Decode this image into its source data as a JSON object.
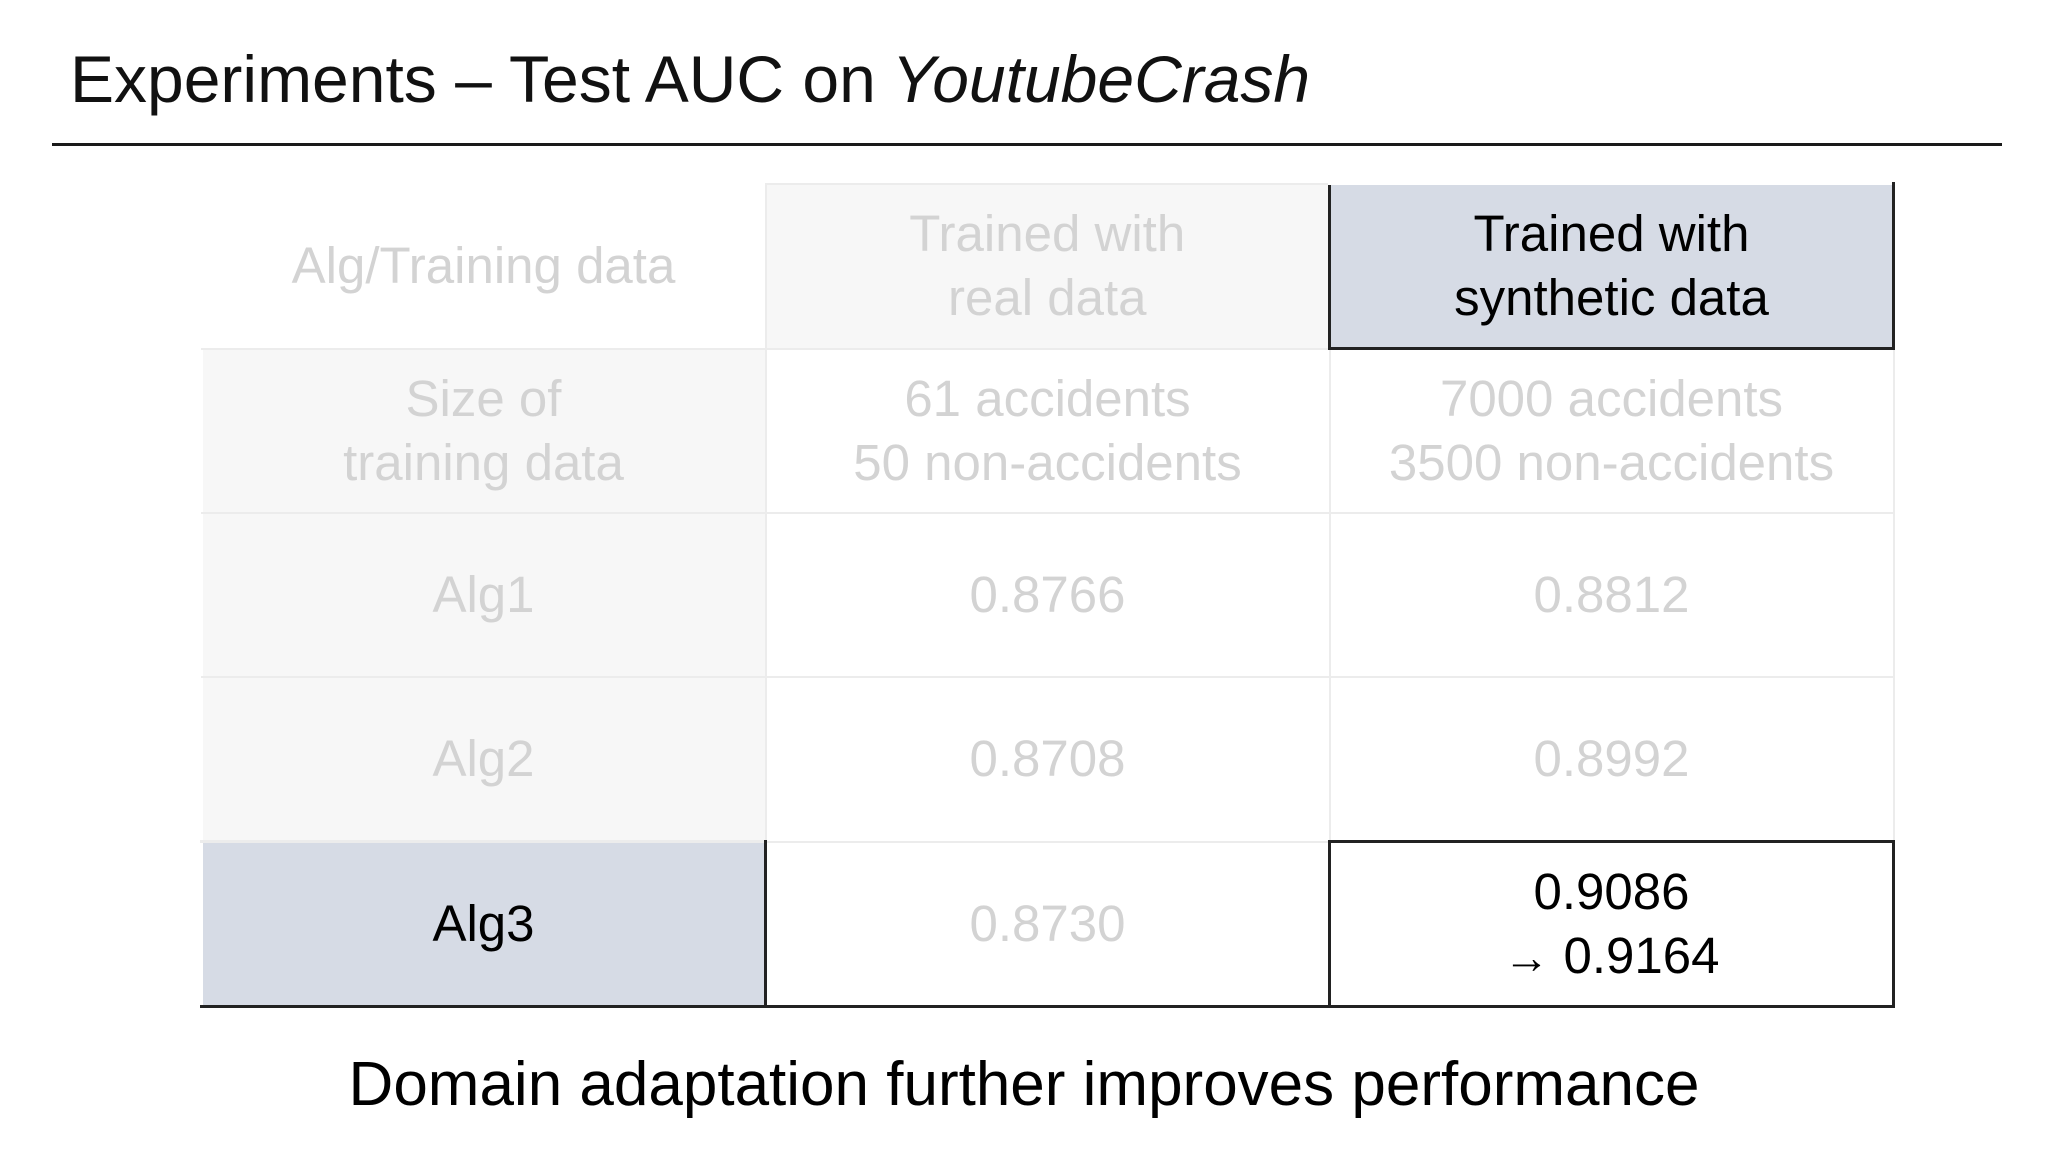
{
  "slide": {
    "title_main": "Experiments – Test AUC on",
    "title_emphasis": "YoutubeCrash",
    "caption": "Domain adaptation further improves performance"
  },
  "table": {
    "header": {
      "corner": "Alg/Training data",
      "real_line1": "Trained with",
      "real_line2": "real data",
      "synthetic_line1": "Trained with",
      "synthetic_line2": "synthetic data"
    },
    "size_row": {
      "label_line1": "Size of",
      "label_line2": "training data",
      "real_line1": "61 accidents",
      "real_line2": "50 non-accidents",
      "synthetic_line1": "7000 accidents",
      "synthetic_line2": "3500 non-accidents"
    },
    "rows": [
      {
        "alg": "Alg1",
        "real": "0.8766",
        "synthetic": "0.8812"
      },
      {
        "alg": "Alg2",
        "real": "0.8708",
        "synthetic": "0.8992"
      },
      {
        "alg": "Alg3",
        "real": "0.8730",
        "synthetic_line1": "0.9086",
        "synthetic_arrow": "→",
        "synthetic_line2": "0.9164"
      }
    ]
  },
  "colors": {
    "highlight_fill": "#d6dbe5",
    "dimmed_text": "#d3d3d3",
    "emphasis_text": "#000000",
    "border_dark": "#222222"
  }
}
